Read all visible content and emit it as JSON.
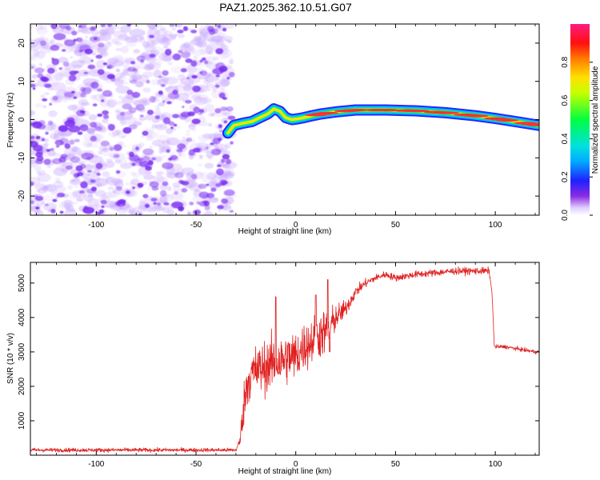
{
  "title": "PAZ1.2025.362.10.51.G07",
  "colors": {
    "noise": "#7a2cf0",
    "snr_line": "#e02020",
    "track": [
      "#0000ff",
      "#00ccff",
      "#00ff60",
      "#ffe000",
      "#ff3030"
    ]
  },
  "chart_data": [
    {
      "type": "heatmap",
      "title": "",
      "xlabel": "Height of straight line (km)",
      "ylabel": "Frequency (Hz)",
      "xlim": [
        -133,
        122
      ],
      "ylim": [
        -25,
        25
      ],
      "xticks": [
        -100,
        -50,
        0,
        50,
        100
      ],
      "yticks": [
        -20,
        -10,
        0,
        10,
        20
      ],
      "noise_region_x": [
        -133,
        -32
      ],
      "track": {
        "x": [
          -34,
          -31,
          -27,
          -22,
          -18,
          -14,
          -11,
          -8,
          -5,
          -2,
          1,
          4,
          8,
          13,
          20,
          30,
          45,
          60,
          75,
          90,
          100,
          110,
          122
        ],
        "y": [
          -3.5,
          -1.5,
          -1.0,
          -0.5,
          0.5,
          1.5,
          2.8,
          2.2,
          0.5,
          0.0,
          0.2,
          0.5,
          1.0,
          1.5,
          2.0,
          2.5,
          2.5,
          2.3,
          1.8,
          1.0,
          0.3,
          -0.5,
          -1.5
        ],
        "amp": [
          0.25,
          0.35,
          0.45,
          0.55,
          0.6,
          0.6,
          0.7,
          0.7,
          0.7,
          0.7,
          0.75,
          0.8,
          0.8,
          0.8,
          0.9,
          0.95,
          1.0,
          1.0,
          0.95,
          0.95,
          0.9,
          0.9,
          0.8
        ]
      },
      "colorbar": {
        "label": "Normalized spectral amplitude",
        "range": [
          0,
          1
        ],
        "ticks": [
          "0.0",
          "0.2",
          "0.4",
          "0.6",
          "0.8"
        ],
        "tick_values": [
          0,
          0.2,
          0.4,
          0.6,
          0.8
        ]
      }
    },
    {
      "type": "line",
      "title": "",
      "xlabel": "Height of straight line (km)",
      "ylabel": "SNR (10 * v/v)",
      "xlim": [
        -133,
        122
      ],
      "ylim": [
        0,
        5600
      ],
      "xticks": [
        -100,
        -50,
        0,
        50,
        100
      ],
      "yticks": [
        1000,
        2000,
        3000,
        4000,
        5000
      ],
      "profile": {
        "x": [
          -133,
          -30,
          -28,
          -26,
          -24,
          -22,
          -20,
          -16,
          -12,
          -8,
          -4,
          0,
          4,
          8,
          12,
          16,
          20,
          25,
          30,
          35,
          40,
          45,
          50,
          60,
          70,
          80,
          90,
          97,
          98.5,
          99.5,
          105,
          110,
          115,
          120,
          122
        ],
        "mean": [
          150,
          150,
          400,
          1500,
          2200,
          2350,
          2450,
          2550,
          2650,
          2700,
          2850,
          2850,
          3150,
          3300,
          3500,
          3600,
          4000,
          4250,
          4750,
          5000,
          5150,
          5250,
          5150,
          5250,
          5300,
          5350,
          5350,
          5350,
          4600,
          3150,
          3150,
          3100,
          3050,
          3000,
          3000
        ],
        "noise": [
          45,
          45,
          120,
          500,
          550,
          600,
          600,
          600,
          600,
          600,
          600,
          600,
          550,
          550,
          550,
          500,
          300,
          200,
          120,
          100,
          80,
          80,
          80,
          80,
          80,
          80,
          80,
          80,
          80,
          45,
          45,
          45,
          45,
          45,
          45
        ],
        "spikes": [
          {
            "x": -10,
            "y": 4600
          },
          {
            "x": 16,
            "y": 5100
          },
          {
            "x": 10,
            "y": 4650
          },
          {
            "x": 17,
            "y": 3000
          }
        ]
      }
    }
  ]
}
